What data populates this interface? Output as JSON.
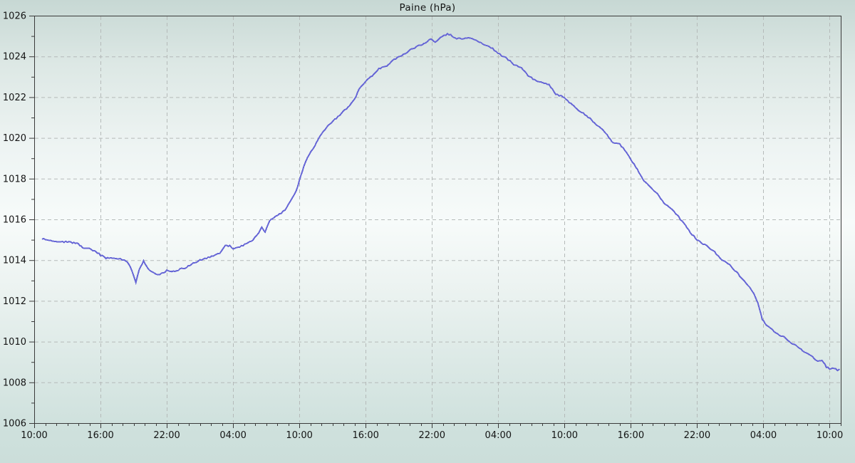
{
  "page": {
    "title": "Paine (hPa)"
  },
  "chart_data": {
    "type": "line",
    "title": "Paine (hPa)",
    "xlabel": "",
    "ylabel": "hPa",
    "legend": "none",
    "grid": "dashed gridlines at every labeled tick, both axes",
    "xlim_hours": [
      0,
      73
    ],
    "ylim": [
      1006,
      1026
    ],
    "y_major_tick_step": 2,
    "y_minor_tick_step": 1,
    "y_major_ticks": [
      1006,
      1008,
      1010,
      1012,
      1014,
      1016,
      1018,
      1020,
      1022,
      1024,
      1026
    ],
    "x_major_tick_interval_hours": 6,
    "x_minor_tick_interval_hours": 1,
    "x_tick_labels": [
      "10:00",
      "16:00",
      "22:00",
      "04:00",
      "10:00",
      "16:00",
      "22:00",
      "04:00",
      "10:00",
      "16:00",
      "22:00",
      "04:00",
      "10:00"
    ],
    "colors": {
      "line": "#6767d6",
      "grid": "#b5bab9",
      "frame": "#3a3a3a",
      "text": "#141414"
    },
    "series": [
      {
        "name": "Paine",
        "x_unit": "hours after first tick (10:00 day 1)",
        "points": [
          [
            0.7,
            1015.05
          ],
          [
            1.2,
            1015.0
          ],
          [
            1.8,
            1014.95
          ],
          [
            2.4,
            1014.9
          ],
          [
            3.0,
            1014.9
          ],
          [
            3.6,
            1014.85
          ],
          [
            4.0,
            1014.8
          ],
          [
            4.4,
            1014.6
          ],
          [
            5.0,
            1014.55
          ],
          [
            5.6,
            1014.4
          ],
          [
            6.0,
            1014.25
          ],
          [
            6.5,
            1014.1
          ],
          [
            7.2,
            1014.1
          ],
          [
            7.8,
            1014.05
          ],
          [
            8.3,
            1013.95
          ],
          [
            8.7,
            1013.7
          ],
          [
            9.0,
            1013.2
          ],
          [
            9.2,
            1012.9
          ],
          [
            9.5,
            1013.55
          ],
          [
            9.9,
            1013.95
          ],
          [
            10.3,
            1013.6
          ],
          [
            10.7,
            1013.4
          ],
          [
            11.2,
            1013.3
          ],
          [
            11.7,
            1013.35
          ],
          [
            12.0,
            1013.5
          ],
          [
            12.6,
            1013.45
          ],
          [
            13.2,
            1013.55
          ],
          [
            13.8,
            1013.65
          ],
          [
            14.4,
            1013.85
          ],
          [
            15.0,
            1014.0
          ],
          [
            15.6,
            1014.1
          ],
          [
            16.2,
            1014.2
          ],
          [
            16.8,
            1014.35
          ],
          [
            17.3,
            1014.7
          ],
          [
            17.7,
            1014.7
          ],
          [
            18.0,
            1014.55
          ],
          [
            18.6,
            1014.65
          ],
          [
            19.2,
            1014.8
          ],
          [
            19.8,
            1015.0
          ],
          [
            20.3,
            1015.35
          ],
          [
            20.6,
            1015.6
          ],
          [
            20.9,
            1015.4
          ],
          [
            21.3,
            1015.9
          ],
          [
            21.7,
            1016.1
          ],
          [
            22.2,
            1016.25
          ],
          [
            22.7,
            1016.45
          ],
          [
            23.2,
            1016.9
          ],
          [
            23.7,
            1017.35
          ],
          [
            24.0,
            1017.9
          ],
          [
            24.4,
            1018.6
          ],
          [
            24.9,
            1019.2
          ],
          [
            25.4,
            1019.6
          ],
          [
            26.0,
            1020.2
          ],
          [
            26.6,
            1020.6
          ],
          [
            27.2,
            1020.9
          ],
          [
            27.8,
            1021.2
          ],
          [
            28.4,
            1021.5
          ],
          [
            29.0,
            1021.9
          ],
          [
            29.4,
            1022.4
          ],
          [
            30.0,
            1022.8
          ],
          [
            30.6,
            1023.05
          ],
          [
            31.2,
            1023.4
          ],
          [
            31.9,
            1023.55
          ],
          [
            32.6,
            1023.85
          ],
          [
            33.3,
            1024.05
          ],
          [
            34.0,
            1024.3
          ],
          [
            34.7,
            1024.5
          ],
          [
            35.4,
            1024.65
          ],
          [
            35.9,
            1024.85
          ],
          [
            36.3,
            1024.7
          ],
          [
            36.8,
            1024.95
          ],
          [
            37.4,
            1025.1
          ],
          [
            37.7,
            1025.05
          ],
          [
            38.1,
            1024.9
          ],
          [
            38.7,
            1024.85
          ],
          [
            39.3,
            1024.9
          ],
          [
            40.0,
            1024.8
          ],
          [
            40.6,
            1024.6
          ],
          [
            41.2,
            1024.5
          ],
          [
            41.8,
            1024.25
          ],
          [
            42.3,
            1024.05
          ],
          [
            42.9,
            1023.85
          ],
          [
            43.4,
            1023.6
          ],
          [
            44.1,
            1023.45
          ],
          [
            44.7,
            1023.05
          ],
          [
            45.3,
            1022.85
          ],
          [
            46.0,
            1022.7
          ],
          [
            46.6,
            1022.6
          ],
          [
            47.2,
            1022.15
          ],
          [
            48.0,
            1022.0
          ],
          [
            48.7,
            1021.6
          ],
          [
            49.4,
            1021.3
          ],
          [
            50.0,
            1021.1
          ],
          [
            50.7,
            1020.75
          ],
          [
            51.4,
            1020.4
          ],
          [
            52.0,
            1020.05
          ],
          [
            52.4,
            1019.75
          ],
          [
            53.0,
            1019.7
          ],
          [
            53.6,
            1019.3
          ],
          [
            54.0,
            1018.95
          ],
          [
            54.6,
            1018.45
          ],
          [
            55.2,
            1017.9
          ],
          [
            55.8,
            1017.6
          ],
          [
            56.4,
            1017.25
          ],
          [
            57.0,
            1016.8
          ],
          [
            57.6,
            1016.55
          ],
          [
            58.2,
            1016.2
          ],
          [
            58.8,
            1015.8
          ],
          [
            59.4,
            1015.35
          ],
          [
            60.0,
            1015.0
          ],
          [
            60.4,
            1014.85
          ],
          [
            61.0,
            1014.65
          ],
          [
            61.6,
            1014.4
          ],
          [
            62.2,
            1014.0
          ],
          [
            62.8,
            1013.85
          ],
          [
            63.4,
            1013.5
          ],
          [
            64.0,
            1013.15
          ],
          [
            64.6,
            1012.75
          ],
          [
            65.1,
            1012.4
          ],
          [
            65.5,
            1011.9
          ],
          [
            65.9,
            1011.1
          ],
          [
            66.3,
            1010.8
          ],
          [
            66.8,
            1010.6
          ],
          [
            67.3,
            1010.35
          ],
          [
            67.9,
            1010.2
          ],
          [
            68.5,
            1009.95
          ],
          [
            69.1,
            1009.75
          ],
          [
            69.7,
            1009.5
          ],
          [
            70.3,
            1009.3
          ],
          [
            70.9,
            1009.05
          ],
          [
            71.3,
            1009.1
          ],
          [
            71.7,
            1008.75
          ],
          [
            72.1,
            1008.65
          ],
          [
            72.4,
            1008.7
          ],
          [
            72.7,
            1008.6
          ],
          [
            72.9,
            1008.65
          ]
        ]
      }
    ]
  }
}
